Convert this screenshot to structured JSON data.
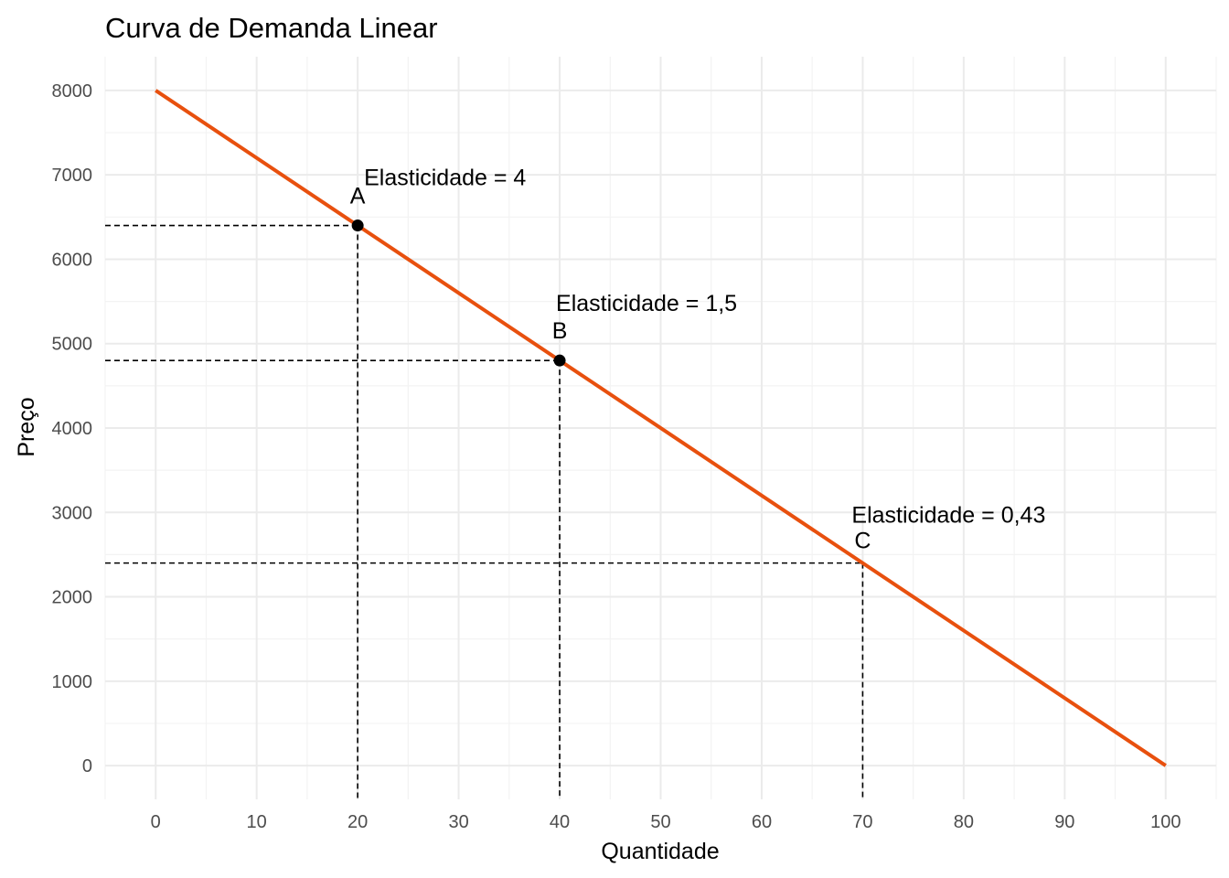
{
  "chart_data": {
    "type": "line",
    "title": "Curva de Demanda Linear",
    "xlabel": "Quantidade",
    "ylabel": "Preço",
    "xlim": [
      -5,
      105
    ],
    "ylim": [
      -400,
      8400
    ],
    "x_ticks": [
      0,
      10,
      20,
      30,
      40,
      50,
      60,
      70,
      80,
      90,
      100
    ],
    "y_ticks": [
      0,
      1000,
      2000,
      3000,
      4000,
      5000,
      6000,
      7000,
      8000
    ],
    "grid": true,
    "colors": {
      "line": "#E8500E",
      "points": "#000000",
      "guides": "#000000"
    },
    "series": [
      {
        "x": [
          0,
          100
        ],
        "y": [
          8000,
          0
        ]
      }
    ],
    "points": [
      {
        "label": "A",
        "x": 20,
        "y": 6400,
        "elasticity_text": "Elasticidade = 4",
        "marker": true
      },
      {
        "label": "B",
        "x": 40,
        "y": 4800,
        "elasticity_text": "Elasticidade = 1,5",
        "marker": true
      },
      {
        "label": "C",
        "x": 70,
        "y": 2400,
        "elasticity_text": "Elasticidade = 0,43",
        "marker": false
      }
    ]
  }
}
